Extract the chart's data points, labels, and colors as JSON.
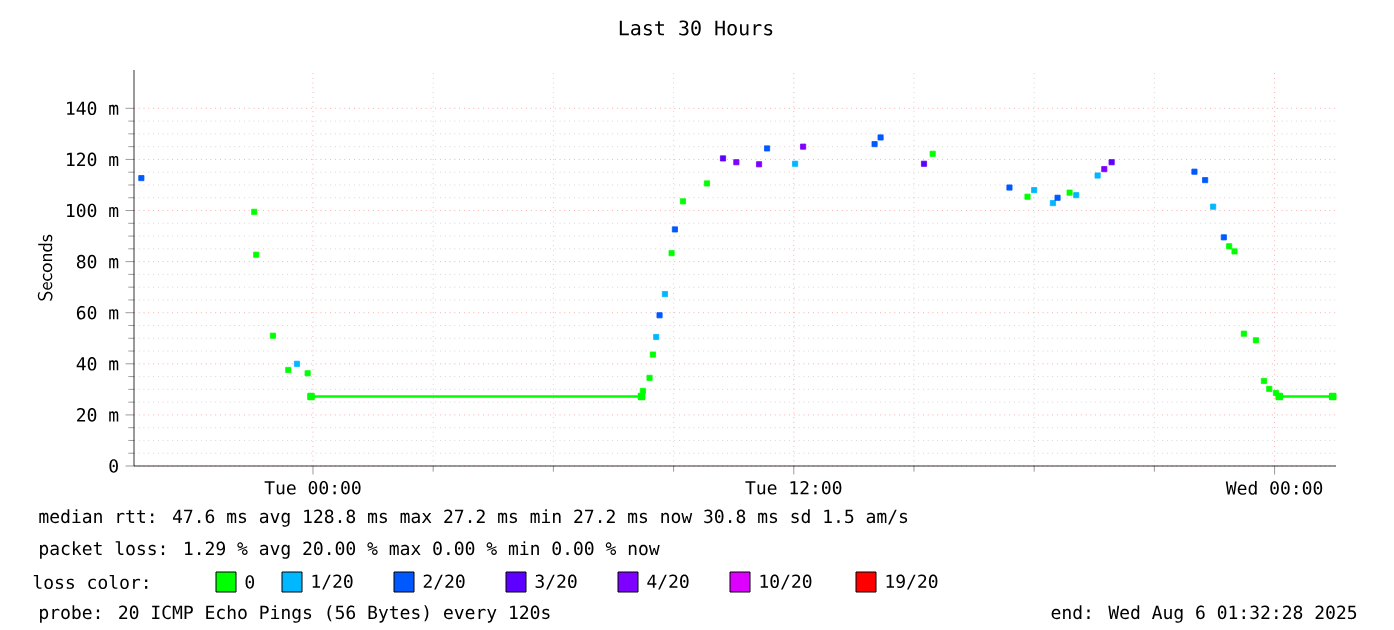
{
  "chart_data": {
    "type": "line",
    "title": "Last 30 Hours",
    "ylabel": "Seconds",
    "xlim": [
      "2025-08-04T19:32",
      "2025-08-06T01:32"
    ],
    "ylim": [
      0,
      155
    ],
    "xticks": [
      {
        "value": "2025-08-05T00:00",
        "label": "Tue 00:00"
      },
      {
        "value": "2025-08-05T12:00",
        "label": "Tue 12:00"
      },
      {
        "value": "2025-08-06T00:00",
        "label": "Wed 00:00"
      }
    ],
    "yticks": [
      0,
      {
        "value": 20,
        "label": "20 m"
      },
      {
        "value": 40,
        "label": "40 m"
      },
      {
        "value": 60,
        "label": "60 m"
      },
      {
        "value": 80,
        "label": "80 m"
      },
      {
        "value": 100,
        "label": "100 m"
      },
      {
        "value": 120,
        "label": "120 m"
      },
      {
        "value": 140,
        "label": "140 m"
      }
    ],
    "grid": true,
    "marker": "square",
    "legend": "bottom",
    "legend_title": "loss color:",
    "series": [
      {
        "color": "#00ff00",
        "x": [
          "2025-08-04T23:57",
          "2025-08-05T08:12"
        ],
        "values": [
          27.2,
          27.2
        ]
      },
      {
        "color": "#00ff00",
        "x": [
          "2025-08-06T00:07",
          "2025-08-06T01:27"
        ],
        "values": [
          27.2,
          27.2
        ]
      },
      {
        "name": "0",
        "color": "#00ff00",
        "type": "scatter",
        "x": [
          "2025-08-04T22:32",
          "2025-08-04T22:35",
          "2025-08-04T23:00",
          "2025-08-04T23:23",
          "2025-08-04T23:52",
          "2025-08-05T08:14",
          "2025-08-05T08:24",
          "2025-08-05T08:29",
          "2025-08-05T08:57",
          "2025-08-05T09:14",
          "2025-08-05T09:50",
          "2025-08-05T15:28",
          "2025-08-05T17:50",
          "2025-08-05T18:53",
          "2025-08-05T22:52",
          "2025-08-05T23:00",
          "2025-08-05T23:14",
          "2025-08-05T23:32",
          "2025-08-05T23:44",
          "2025-08-05T23:52",
          "2025-08-06T00:02"
        ],
        "values": [
          99.5,
          82.7,
          51,
          37.6,
          36.3,
          29.4,
          34.5,
          43.6,
          83.3,
          103.6,
          110.6,
          122.2,
          105.4,
          107,
          86,
          84,
          51.8,
          49.2,
          33.3,
          30.2,
          28.6
        ]
      },
      {
        "name": "1/20",
        "color": "#00b8ff",
        "type": "scatter",
        "x": [
          "2025-08-04T23:36",
          "2025-08-05T08:34",
          "2025-08-05T08:47",
          "2025-08-05T12:02",
          "2025-08-05T18:00",
          "2025-08-05T18:28",
          "2025-08-05T19:03",
          "2025-08-05T19:35",
          "2025-08-05T22:28"
        ],
        "values": [
          40,
          50.5,
          67.3,
          118.3,
          108,
          102.9,
          106,
          113.7,
          101.5
        ]
      },
      {
        "name": "2/20",
        "color": "#0059ff",
        "type": "scatter",
        "x": [
          "2025-08-04T19:43",
          "2025-08-05T08:39",
          "2025-08-05T09:02",
          "2025-08-05T11:20",
          "2025-08-05T14:01",
          "2025-08-05T14:10",
          "2025-08-05T17:23",
          "2025-08-05T18:35",
          "2025-08-05T22:00",
          "2025-08-05T22:16",
          "2025-08-05T22:44"
        ],
        "values": [
          112.7,
          59,
          92.6,
          124.3,
          126,
          128.6,
          109,
          105,
          115.2,
          111.9,
          89.5
        ]
      },
      {
        "name": "3/20",
        "color": "#5e00ff",
        "type": "scatter",
        "x": [
          "2025-08-05T10:14",
          "2025-08-05T15:15",
          "2025-08-05T19:56"
        ],
        "values": [
          120.4,
          118.3,
          118.9
        ]
      },
      {
        "name": "4/20",
        "color": "#7e00ff",
        "type": "scatter",
        "x": [
          "2025-08-05T10:34",
          "2025-08-05T11:08",
          "2025-08-05T12:14",
          "2025-08-05T19:45"
        ],
        "values": [
          118.9,
          118.1,
          125,
          116.2
        ]
      },
      {
        "name": "10/20",
        "color": "#dd00ff",
        "type": "scatter"
      },
      {
        "name": "19/20",
        "color": "#ff0000",
        "type": "scatter"
      }
    ],
    "annotations": [
      "median rtt: 47.6 ms avg 128.8 ms max 27.2 ms min 27.2 ms now 30.8 ms sd 1.5 am/s",
      "packet loss: 1.29 % avg 20.00 % max 0.00 % min 0.00 % now",
      "probe: 20 ICMP Echo Pings (56 Bytes) every 120s",
      "end: Wed Aug 6 01:32:28 2025"
    ]
  }
}
